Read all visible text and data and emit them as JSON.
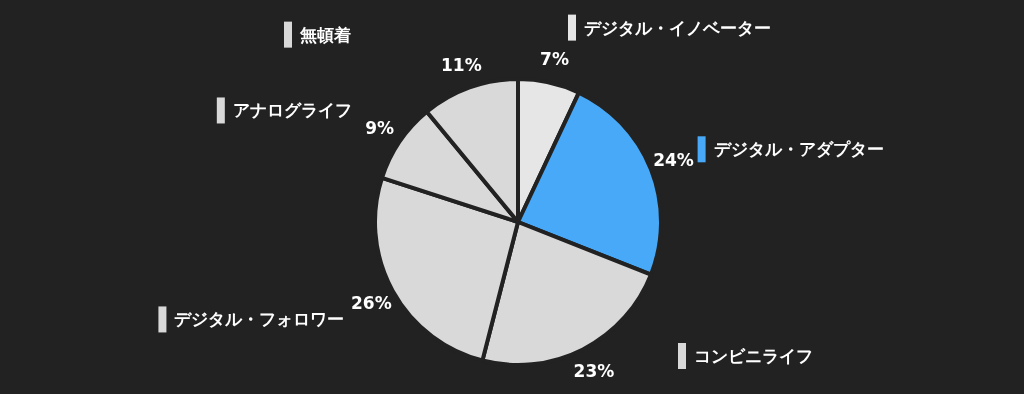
{
  "chart_data": {
    "type": "pie",
    "categories": [
      "デジタル・イノベーター",
      "デジタル・アダプター",
      "コンビニライフ",
      "デジタル・フォロワー",
      "アナログライフ",
      "無頓着"
    ],
    "values": [
      7,
      24,
      23,
      26,
      9,
      11
    ],
    "value_labels": [
      "7%",
      "24%",
      "23%",
      "26%",
      "9%",
      "11%"
    ],
    "legend": "top",
    "colors": [
      "#e6e6e6",
      "#47a9f7",
      "#d9d9d9",
      "#d9d9d9",
      "#d9d9d9",
      "#d9d9d9"
    ]
  }
}
